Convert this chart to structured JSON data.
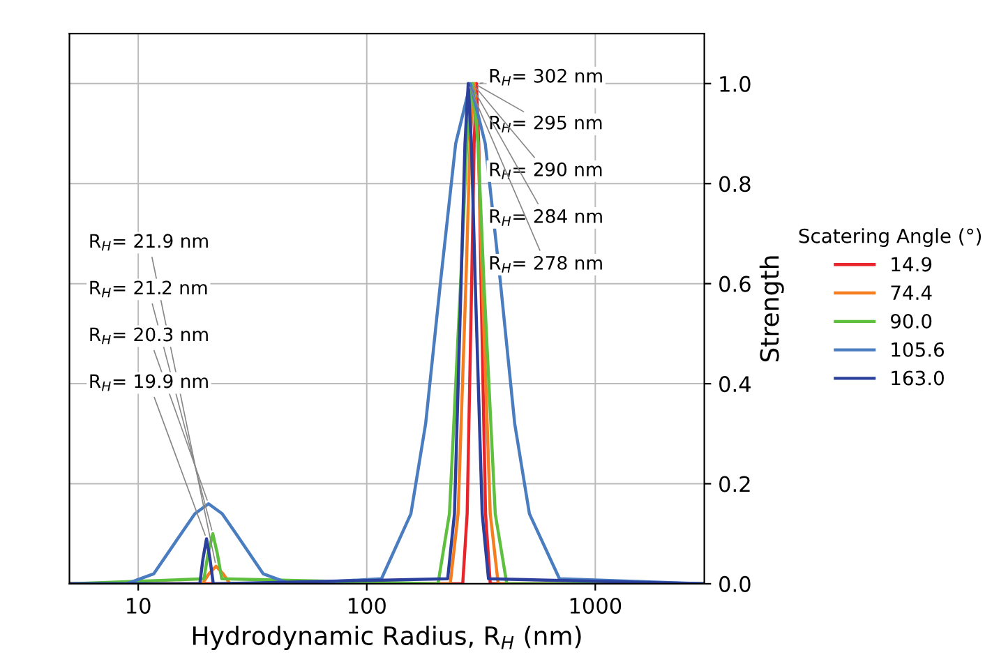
{
  "chart_data": {
    "type": "line",
    "xlabel": "Hydrodynamic Radius, R$_{H}$ (nm)",
    "ylabel": "Strength",
    "legend_title": "Scatering Angle (°)",
    "log": "x",
    "xlim": [
      5,
      3000
    ],
    "xticks": [
      10,
      100,
      1000
    ],
    "ylim": [
      0,
      1.1
    ],
    "yticks": [
      {
        "value": 0,
        "label": "0.0"
      },
      {
        "value": 0.2,
        "label": "0.2"
      },
      {
        "value": 0.4,
        "label": "0.4"
      },
      {
        "value": 0.6,
        "label": "0.6"
      },
      {
        "value": 0.8,
        "label": "0.8"
      },
      {
        "value": 1.0,
        "label": "1.0"
      }
    ],
    "grid": true,
    "legend": "right",
    "marker": "none",
    "line_style": "solid",
    "series": [
      {
        "name": "14.9",
        "color": "#e8252a",
        "x": [
          5,
          263,
          275,
          288,
          295,
          302,
          309,
          316,
          331,
          347,
          3000
        ],
        "values": [
          0,
          0,
          0.14,
          0.61,
          0.88,
          1.0,
          0.88,
          0.61,
          0.14,
          0,
          0
        ]
      },
      {
        "name": "74.4",
        "color": "#f57f20",
        "x": [
          5,
          19.1,
          20.4,
          21.9,
          23.5,
          25.2,
          232,
          251,
          272,
          283,
          295,
          307,
          320,
          347,
          376,
          3000
        ],
        "values": [
          0,
          0,
          0.02,
          0.035,
          0.02,
          0,
          0,
          0.14,
          0.61,
          0.88,
          1.0,
          0.88,
          0.61,
          0.14,
          0,
          0
        ]
      },
      {
        "name": "90.0",
        "color": "#5fbf3f",
        "x": [
          5,
          19.4,
          20.2,
          21.2,
          22.2,
          23.2,
          205,
          230,
          258,
          274,
          290,
          307,
          325,
          365,
          410,
          3000
        ],
        "values": [
          0,
          0.01,
          0.06,
          0.1,
          0.06,
          0.01,
          0,
          0.14,
          0.61,
          0.88,
          1.0,
          0.88,
          0.61,
          0.14,
          0,
          0
        ]
      },
      {
        "name": "105.6",
        "color": "#4a7cc0",
        "x": [
          5,
          8.9,
          11.7,
          15.4,
          17.7,
          20.3,
          23.3,
          26.8,
          35.2,
          46.2,
          116,
          156,
          181,
          211,
          245,
          284,
          330,
          383,
          444,
          515,
          697,
          3000
        ],
        "values": [
          0,
          0,
          0.02,
          0.1,
          0.14,
          0.16,
          0.14,
          0.1,
          0.02,
          0,
          0.01,
          0.14,
          0.32,
          0.61,
          0.88,
          1.0,
          0.88,
          0.61,
          0.32,
          0.14,
          0.01,
          0
        ]
      },
      {
        "name": "163.0",
        "color": "#2b3f9c",
        "x": [
          5,
          18.6,
          19.2,
          19.9,
          20.6,
          21.3,
          226,
          242,
          259,
          269,
          278,
          287,
          298,
          320,
          341,
          3000
        ],
        "values": [
          0,
          0,
          0.05,
          0.09,
          0.05,
          0,
          0.01,
          0.14,
          0.61,
          0.88,
          1.0,
          0.88,
          0.61,
          0.14,
          0.01,
          0
        ]
      }
    ],
    "annotations": [
      {
        "text": "R$_{H}$= 302 nm",
        "x": 302,
        "y": 1.0
      },
      {
        "text": "R$_{H}$= 21.9 nm",
        "x": 21.9,
        "y": 0.035
      },
      {
        "text": "R$_{H}$= 295 nm",
        "x": 295,
        "y": 1.0
      },
      {
        "text": "R$_{H}$= 21.2 nm",
        "x": 21.2,
        "y": 0.1
      },
      {
        "text": "R$_{H}$= 290 nm",
        "x": 290,
        "y": 1.0
      },
      {
        "text": "R$_{H}$= 20.3 nm",
        "x": 20.3,
        "y": 0.16
      },
      {
        "text": "R$_{H}$= 284 nm",
        "x": 284,
        "y": 1.0
      },
      {
        "text": "R$_{H}$= 19.9 nm",
        "x": 19.9,
        "y": 0.09
      },
      {
        "text": "R$_{H}$= 278 nm",
        "x": 278,
        "y": 1.0
      }
    ]
  }
}
